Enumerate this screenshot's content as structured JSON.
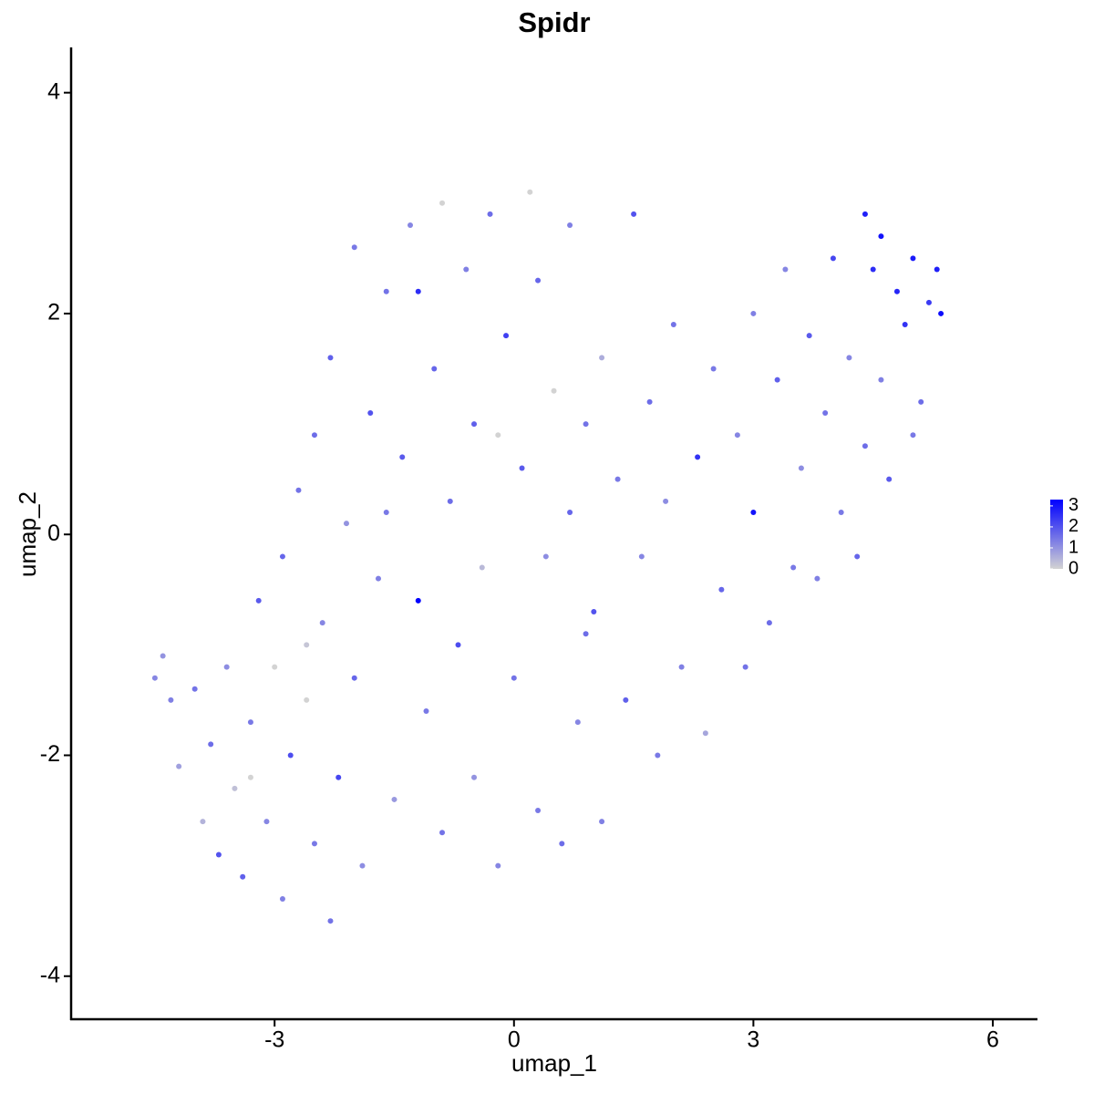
{
  "chart_data": {
    "type": "scatter",
    "title": "Spidr",
    "x_label": "umap_1",
    "y_label": "umap_2",
    "xlim": [
      -5.55,
      6.56
    ],
    "ylim": [
      -4.39,
      4.41
    ],
    "xticks": [
      -3,
      0,
      3,
      6
    ],
    "yticks": [
      -4,
      -2,
      0,
      2,
      4
    ],
    "color_low": "#d3d3d3",
    "color_high": "#0000ff",
    "color_lim": [
      0,
      3.3
    ],
    "color_ticks": [
      0,
      1,
      2,
      3
    ],
    "x": [
      -4.5,
      -4.4,
      -4.3,
      -4.2,
      -4.0,
      -3.9,
      -3.8,
      -3.7,
      -3.6,
      -3.5,
      -3.4,
      -3.3,
      -3.2,
      -3.1,
      -3.0,
      -2.9,
      -2.9,
      -2.8,
      -2.7,
      -2.6,
      -2.5,
      -2.5,
      -2.4,
      -2.3,
      -2.3,
      -2.2,
      -2.1,
      -2.0,
      -2.0,
      -1.9,
      -1.8,
      -1.7,
      -1.6,
      -1.5,
      -1.4,
      -1.3,
      -1.2,
      -1.2,
      -1.1,
      -1.0,
      -0.9,
      -0.9,
      -0.8,
      -0.7,
      -0.6,
      -0.5,
      -0.5,
      -0.4,
      -0.3,
      -0.2,
      -0.1,
      0.0,
      0.1,
      0.2,
      0.3,
      0.3,
      0.4,
      0.5,
      0.6,
      0.7,
      0.7,
      0.8,
      0.9,
      1.0,
      1.1,
      1.1,
      1.3,
      1.4,
      1.5,
      1.6,
      1.7,
      1.8,
      1.9,
      2.0,
      2.1,
      2.3,
      2.4,
      2.5,
      2.6,
      2.8,
      2.9,
      3.0,
      3.0,
      3.2,
      3.3,
      3.4,
      3.5,
      3.6,
      3.7,
      3.8,
      3.9,
      4.0,
      4.1,
      4.2,
      4.3,
      4.4,
      4.4,
      4.5,
      4.6,
      4.6,
      4.7,
      4.8,
      4.9,
      5.0,
      5.0,
      5.1,
      5.2,
      5.3,
      5.35,
      -3.3,
      -2.6,
      -1.6,
      -0.2,
      0.9
    ],
    "y": [
      -1.3,
      -1.1,
      -1.5,
      -2.1,
      -1.4,
      -2.6,
      -1.9,
      -2.9,
      -1.2,
      -2.3,
      -3.1,
      -1.7,
      -0.6,
      -2.6,
      -1.2,
      -0.2,
      -3.3,
      -2.0,
      0.4,
      -1.5,
      -2.8,
      0.9,
      -0.8,
      -3.5,
      1.6,
      -2.2,
      0.1,
      2.6,
      -1.3,
      -3.0,
      1.1,
      -0.4,
      2.2,
      -2.4,
      0.7,
      2.8,
      -0.6,
      2.2,
      -1.6,
      1.5,
      -2.7,
      3.0,
      0.3,
      -1.0,
      2.4,
      -2.2,
      1.0,
      -0.3,
      2.9,
      -3.0,
      1.8,
      -1.3,
      0.6,
      3.1,
      -2.5,
      2.3,
      -0.2,
      1.3,
      -2.8,
      2.8,
      0.2,
      -1.7,
      1.0,
      -0.7,
      -2.6,
      1.6,
      0.5,
      -1.5,
      2.9,
      -0.2,
      1.2,
      -2.0,
      0.3,
      1.9,
      -1.2,
      0.7,
      -1.8,
      1.5,
      -0.5,
      0.9,
      -1.2,
      2.0,
      0.2,
      -0.8,
      1.4,
      2.4,
      -0.3,
      0.6,
      1.8,
      -0.4,
      1.1,
      2.5,
      0.2,
      1.6,
      -0.2,
      2.9,
      0.8,
      2.4,
      1.4,
      2.7,
      0.5,
      2.2,
      1.9,
      0.9,
      2.5,
      1.2,
      2.1,
      2.4,
      2.0,
      -2.2,
      -1.0,
      0.2,
      0.9,
      -0.9
    ],
    "values": [
      1.2,
      1.0,
      1.3,
      0.8,
      1.5,
      0.5,
      1.6,
      2.0,
      1.1,
      0.3,
      1.8,
      1.4,
      1.9,
      1.2,
      0,
      1.7,
      1.3,
      2.1,
      1.5,
      0,
      1.4,
      1.6,
      1.2,
      1.5,
      1.8,
      2.2,
      1.0,
      1.4,
      1.7,
      1.1,
      2.0,
      1.3,
      1.5,
      0.9,
      1.9,
      1.2,
      3.3,
      2.6,
      1.4,
      1.7,
      1.5,
      0,
      1.6,
      2.1,
      1.3,
      1.0,
      1.8,
      0.4,
      1.6,
      1.2,
      2.3,
      1.5,
      1.9,
      0,
      1.4,
      1.7,
      1.1,
      0,
      1.6,
      1.3,
      1.7,
      1.2,
      1.5,
      2.0,
      1.3,
      0.6,
      1.4,
      1.8,
      2.0,
      1.2,
      1.6,
      1.4,
      1.1,
      1.5,
      1.3,
      2.5,
      0.7,
      1.4,
      1.7,
      1.2,
      1.5,
      1.3,
      3.0,
      1.6,
      1.8,
      1.2,
      1.4,
      1.1,
      1.9,
      1.3,
      1.5,
      2.2,
      1.4,
      1.2,
      1.7,
      2.8,
      1.6,
      2.6,
      1.3,
      3.0,
      1.9,
      2.7,
      2.5,
      1.4,
      2.9,
      1.6,
      2.4,
      2.8,
      3.1,
      0,
      0.2,
      1.4,
      0,
      1.6
    ]
  }
}
